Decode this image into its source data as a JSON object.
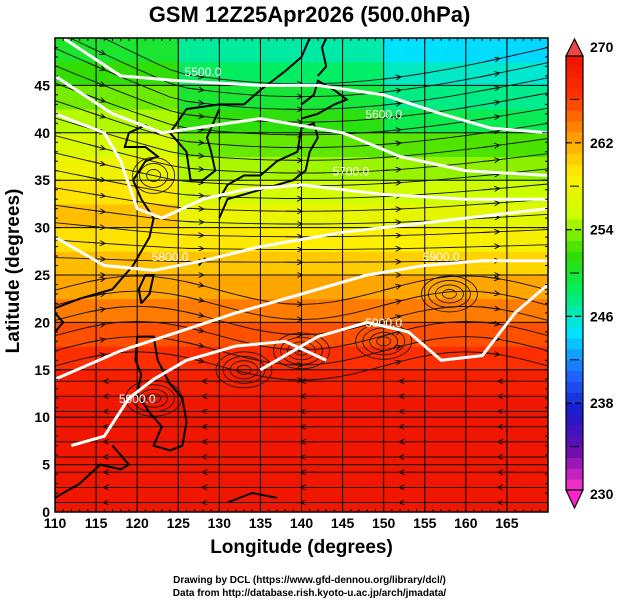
{
  "title": "GSM 12Z25Apr2026 (500.0hPa)",
  "chart_data": {
    "type": "heatmap",
    "title": "GSM 12Z25Apr2026 (500.0hPa)",
    "xlabel": "Longitude (degrees)",
    "ylabel": "Latitude  (degrees)",
    "xlim": [
      110,
      170
    ],
    "ylim": [
      0,
      50
    ],
    "x_ticks": [
      "110",
      "115",
      "120",
      "125",
      "130",
      "135",
      "140",
      "145",
      "150",
      "155",
      "160",
      "165"
    ],
    "y_ticks": [
      "0",
      "5",
      "10",
      "15",
      "20",
      "25",
      "30",
      "35",
      "40",
      "45"
    ],
    "grid": true,
    "shaded_field": "temperature (K)",
    "colorbar": {
      "range": [
        230,
        270
      ],
      "ticks": [
        "230",
        "238",
        "246",
        "254",
        "262",
        "270"
      ],
      "colors": [
        "#ff33cc",
        "#6a0dad",
        "#1a1acc",
        "#1e6bff",
        "#00e5ff",
        "#00ee66",
        "#33dd00",
        "#ccff00",
        "#ffee00",
        "#ff9900",
        "#ff3300",
        "#ee1100"
      ],
      "extend": "both"
    },
    "contours": {
      "field": "geopotential height (m)",
      "color": "#ffffff",
      "labels": [
        "5500.0",
        "5600.0",
        "5700.0",
        "5800.0",
        "5900.0",
        "5900.0",
        "5900.0"
      ]
    },
    "streamlines": "wind",
    "coastline_color": "#000000"
  },
  "credits": {
    "line1": "Drawing by DCL (https://www.gfd-dennou.org/library/dcl/)",
    "line2": "Data from http://database.rish.kyoto-u.ac.jp/arch/jmadata/"
  }
}
